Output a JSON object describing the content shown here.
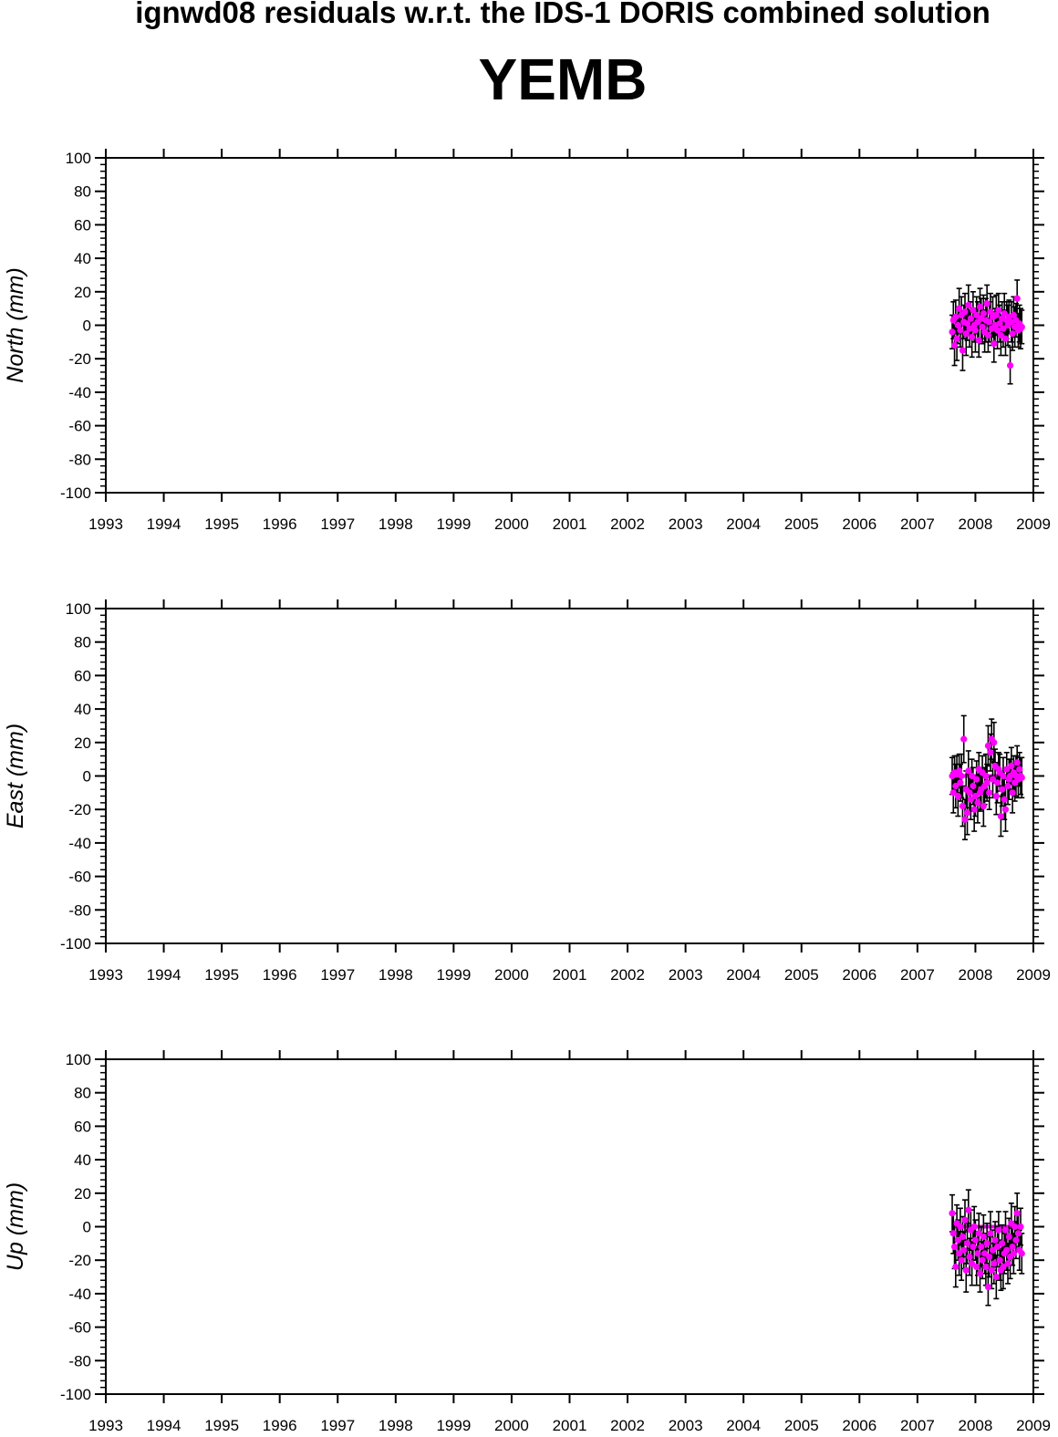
{
  "header": {
    "title": "ignwd08 residuals w.r.t. the IDS-1 DORIS combined solution",
    "station": "YEMB"
  },
  "colors": {
    "marker": "#ff00ff",
    "errorbar": "#000000",
    "axis": "#000000"
  },
  "chart_data": [
    {
      "type": "scatter",
      "ylabel": "North (mm)",
      "xlim": [
        1993,
        2009
      ],
      "ylim": [
        -100,
        100
      ],
      "xticks": [
        "1993",
        "1994",
        "1995",
        "1996",
        "1997",
        "1998",
        "1999",
        "2000",
        "2001",
        "2002",
        "2003",
        "2004",
        "2005",
        "2006",
        "2007",
        "2008",
        "2009"
      ],
      "yticks": [
        "100",
        "80",
        "60",
        "40",
        "20",
        "0",
        "-20",
        "-40",
        "-60",
        "-80",
        "-100"
      ],
      "grid": false,
      "series": [
        {
          "x": [
            2007.6,
            2007.62,
            2007.64,
            2007.66,
            2007.68,
            2007.7,
            2007.72,
            2007.74,
            2007.76,
            2007.78,
            2007.8,
            2007.82,
            2007.84,
            2007.86,
            2007.88,
            2007.9,
            2007.92,
            2007.94,
            2007.96,
            2007.98,
            2008.0,
            2008.02,
            2008.04,
            2008.06,
            2008.08,
            2008.1,
            2008.12,
            2008.14,
            2008.16,
            2008.18,
            2008.2,
            2008.22,
            2008.24,
            2008.26,
            2008.28,
            2008.3,
            2008.32,
            2008.34,
            2008.36,
            2008.38,
            2008.4,
            2008.42,
            2008.44,
            2008.46,
            2008.48,
            2008.5,
            2008.52,
            2008.54,
            2008.56,
            2008.58,
            2008.6,
            2008.62,
            2008.64,
            2008.66,
            2008.68,
            2008.7,
            2008.72,
            2008.74,
            2008.76,
            2008.78,
            2008.8
          ],
          "y": [
            -4,
            3,
            -12,
            5,
            -8,
            0,
            10,
            -3,
            6,
            -15,
            2,
            8,
            -5,
            1,
            12,
            -2,
            4,
            -7,
            9,
            0,
            -3,
            6,
            2,
            -9,
            11,
            4,
            -1,
            7,
            -4,
            3,
            13,
            -6,
            2,
            8,
            -2,
            5,
            -11,
            0,
            6,
            -3,
            9,
            1,
            -6,
            4,
            -2,
            7,
            -8,
            3,
            0,
            5,
            -24,
            2,
            -5,
            6,
            -1,
            3,
            16,
            -3,
            1,
            -2,
            -1
          ],
          "err": [
            10,
            11,
            12,
            10,
            13,
            11,
            12,
            10,
            11,
            12,
            10,
            11,
            13,
            10,
            12,
            11,
            10,
            12,
            11,
            10,
            13,
            11,
            12,
            10,
            11,
            12,
            10,
            11,
            12,
            13,
            11,
            10,
            12,
            11,
            10,
            12,
            11,
            10,
            12,
            11,
            10,
            11,
            12,
            10,
            11,
            12,
            10,
            11,
            12,
            10,
            11,
            12,
            10,
            11,
            12,
            10,
            11,
            10,
            11,
            12,
            10
          ]
        }
      ]
    },
    {
      "type": "scatter",
      "ylabel": "East (mm)",
      "xlim": [
        1993,
        2009
      ],
      "ylim": [
        -100,
        100
      ],
      "xticks": [
        "1993",
        "1994",
        "1995",
        "1996",
        "1997",
        "1998",
        "1999",
        "2000",
        "2001",
        "2002",
        "2003",
        "2004",
        "2005",
        "2006",
        "2007",
        "2008",
        "2009"
      ],
      "yticks": [
        "100",
        "80",
        "60",
        "40",
        "20",
        "0",
        "-20",
        "-40",
        "-60",
        "-80",
        "-100"
      ],
      "grid": false,
      "series": [
        {
          "x": [
            2007.6,
            2007.62,
            2007.64,
            2007.66,
            2007.68,
            2007.7,
            2007.72,
            2007.74,
            2007.76,
            2007.78,
            2007.8,
            2007.82,
            2007.84,
            2007.86,
            2007.88,
            2007.9,
            2007.92,
            2007.94,
            2007.96,
            2007.98,
            2008.0,
            2008.02,
            2008.04,
            2008.06,
            2008.08,
            2008.1,
            2008.12,
            2008.14,
            2008.16,
            2008.18,
            2008.2,
            2008.22,
            2008.24,
            2008.26,
            2008.28,
            2008.3,
            2008.32,
            2008.34,
            2008.36,
            2008.38,
            2008.4,
            2008.42,
            2008.44,
            2008.46,
            2008.48,
            2008.5,
            2008.52,
            2008.54,
            2008.56,
            2008.58,
            2008.6,
            2008.62,
            2008.64,
            2008.66,
            2008.68,
            2008.7,
            2008.72,
            2008.74,
            2008.76,
            2008.78,
            2008.8
          ],
          "y": [
            0,
            -10,
            2,
            -6,
            1,
            -12,
            3,
            -4,
            0,
            -18,
            22,
            -26,
            -8,
            -22,
            3,
            -10,
            -14,
            0,
            -6,
            -20,
            -12,
            -2,
            -16,
            4,
            -10,
            -8,
            2,
            -18,
            -6,
            0,
            -4,
            18,
            -10,
            14,
            22,
            -2,
            20,
            6,
            -12,
            -4,
            4,
            2,
            -24,
            -8,
            0,
            -14,
            -20,
            4,
            -6,
            -2,
            0,
            6,
            -10,
            2,
            -4,
            0,
            8,
            -2,
            4,
            0,
            -1
          ],
          "err": [
            11,
            12,
            10,
            13,
            11,
            12,
            10,
            11,
            13,
            12,
            14,
            12,
            11,
            13,
            12,
            11,
            12,
            10,
            11,
            13,
            12,
            11,
            12,
            10,
            11,
            12,
            10,
            12,
            11,
            13,
            11,
            12,
            10,
            11,
            12,
            11,
            12,
            10,
            11,
            12,
            10,
            11,
            12,
            10,
            11,
            12,
            13,
            10,
            11,
            12,
            10,
            11,
            12,
            10,
            11,
            12,
            10,
            11,
            10,
            11,
            12
          ]
        }
      ]
    },
    {
      "type": "scatter",
      "ylabel": "Up (mm)",
      "xlim": [
        1993,
        2009
      ],
      "ylim": [
        -100,
        100
      ],
      "xticks": [
        "1993",
        "1994",
        "1995",
        "1996",
        "1997",
        "1998",
        "1999",
        "2000",
        "2001",
        "2002",
        "2003",
        "2004",
        "2005",
        "2006",
        "2007",
        "2008",
        "2009"
      ],
      "yticks": [
        "100",
        "80",
        "60",
        "40",
        "20",
        "0",
        "-20",
        "-40",
        "-60",
        "-80",
        "-100"
      ],
      "grid": false,
      "series": [
        {
          "x": [
            2007.6,
            2007.62,
            2007.64,
            2007.66,
            2007.68,
            2007.7,
            2007.72,
            2007.74,
            2007.76,
            2007.78,
            2007.8,
            2007.82,
            2007.84,
            2007.86,
            2007.88,
            2007.9,
            2007.92,
            2007.94,
            2007.96,
            2007.98,
            2008.0,
            2008.02,
            2008.04,
            2008.06,
            2008.08,
            2008.1,
            2008.12,
            2008.14,
            2008.16,
            2008.18,
            2008.2,
            2008.22,
            2008.24,
            2008.26,
            2008.28,
            2008.3,
            2008.32,
            2008.34,
            2008.36,
            2008.38,
            2008.4,
            2008.42,
            2008.44,
            2008.46,
            2008.48,
            2008.5,
            2008.52,
            2008.54,
            2008.56,
            2008.58,
            2008.6,
            2008.62,
            2008.64,
            2008.66,
            2008.68,
            2008.7,
            2008.72,
            2008.74,
            2008.76,
            2008.78,
            2008.8
          ],
          "y": [
            8,
            -4,
            -12,
            -24,
            2,
            -8,
            -16,
            0,
            -20,
            -6,
            -14,
            4,
            -26,
            -10,
            10,
            -18,
            -2,
            -22,
            -12,
            0,
            -8,
            -24,
            -16,
            -4,
            -28,
            -12,
            -20,
            -6,
            -16,
            -24,
            -10,
            -36,
            -18,
            -4,
            -26,
            -14,
            -22,
            -8,
            -30,
            -12,
            -2,
            -20,
            -26,
            -10,
            -24,
            -16,
            -2,
            -14,
            -22,
            -6,
            -18,
            2,
            -12,
            -16,
            0,
            -8,
            8,
            -4,
            -14,
            0,
            -16
          ],
          "err": [
            11,
            12,
            13,
            12,
            11,
            12,
            13,
            11,
            12,
            12,
            11,
            12,
            13,
            12,
            12,
            11,
            12,
            13,
            11,
            12,
            12,
            11,
            13,
            12,
            11,
            12,
            11,
            13,
            12,
            11,
            12,
            11,
            12,
            13,
            11,
            12,
            12,
            11,
            13,
            12,
            11,
            12,
            12,
            11,
            13,
            12,
            11,
            12,
            12,
            11,
            13,
            12,
            11,
            12,
            12,
            11,
            12,
            11,
            12,
            11,
            12
          ]
        }
      ]
    }
  ]
}
